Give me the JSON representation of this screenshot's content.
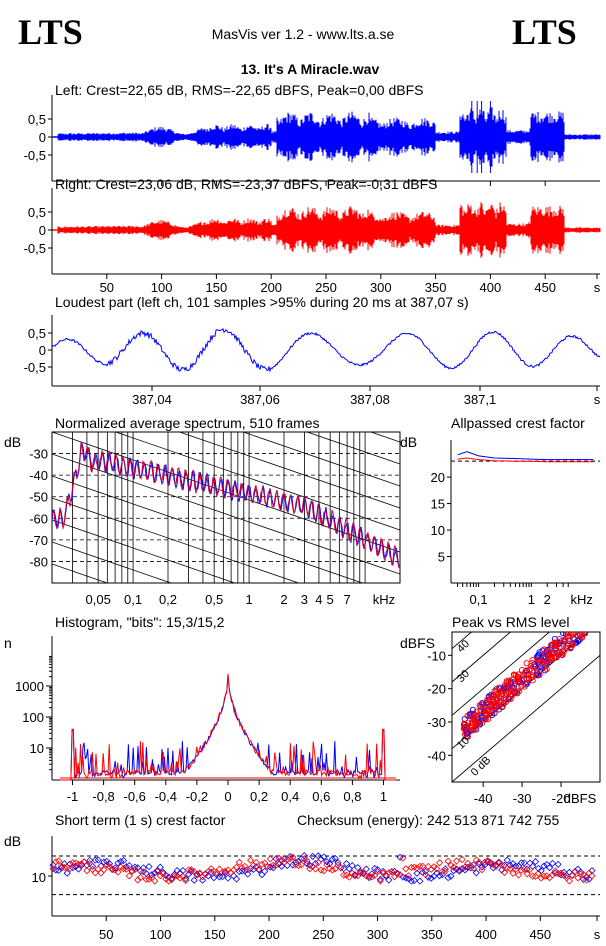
{
  "header": {
    "logo_left": "LTS",
    "logo_right": "LTS",
    "app_title": "MasVis ver 1.2 - www.lts.a.se",
    "file_title": "13. It's A Miracle.wav"
  },
  "colors": {
    "left": "#0000ff",
    "right": "#ff0000",
    "axis": "#000000"
  },
  "chart_data": [
    {
      "id": "left_wave",
      "type": "area",
      "title": "Left: Crest=22,65 dB, RMS=-22,65 dBFS, Peak=0,00 dBFS",
      "yticks": [
        "0,5",
        "0",
        "-0,5"
      ],
      "ylim": [
        -1,
        1
      ],
      "series": [
        {
          "name": "",
          "color": "#0000ff"
        }
      ]
    },
    {
      "id": "right_wave",
      "type": "area",
      "title": "Right: Crest=23,06 dB, RMS=-23,37 dBFS, Peak=-0,31 dBFS",
      "yticks": [
        "0,5",
        "0",
        "-0,5"
      ],
      "ylim": [
        -1,
        1
      ],
      "xticks": [
        "50",
        "100",
        "150",
        "200",
        "250",
        "300",
        "350",
        "400",
        "450",
        "s"
      ],
      "xlim": [
        0,
        500
      ],
      "series": [
        {
          "name": "",
          "color": "#ff0000"
        }
      ]
    },
    {
      "id": "loudest",
      "type": "line",
      "title": "Loudest part (left  ch, 101 samples >95% during 20 ms at 387,07 s)",
      "yticks": [
        "0,5",
        "0",
        "-0,5"
      ],
      "ylim": [
        -1,
        1
      ],
      "xticks": [
        "387,04",
        "387,06",
        "387,08",
        "387,1",
        "s"
      ],
      "xlim": [
        387.02,
        387.12
      ],
      "series": [
        {
          "name": "",
          "color": "#0000ff"
        }
      ]
    },
    {
      "id": "spectrum",
      "type": "line",
      "title": "Normalized average spectrum, 510 frames",
      "ylabel": "dB",
      "yticks": [
        "-30",
        "-40",
        "-50",
        "-60",
        "-70",
        "-80"
      ],
      "ylim": [
        -90,
        -20
      ],
      "xticks": [
        "0,05",
        "0,1",
        "0,2",
        "0,5",
        "1",
        "2",
        "3",
        "4",
        "5",
        "7",
        "kHz"
      ],
      "xlim": [
        0.02,
        20
      ],
      "xscale": "log",
      "series": [
        {
          "name": "",
          "color": "#0000ff"
        },
        {
          "name": "",
          "color": "#cc0033"
        }
      ]
    },
    {
      "id": "allpassed",
      "type": "line",
      "title": "Allpassed crest factor",
      "ylabel": "dB",
      "yticks": [
        "20",
        "15",
        "10",
        "5"
      ],
      "ylim": [
        0,
        27
      ],
      "xticks": [
        "0,1",
        "1",
        "2",
        "kHz"
      ],
      "xlim": [
        0.03,
        20
      ],
      "xscale": "log",
      "series": [
        {
          "name": "",
          "color": "#0000ff",
          "x": [
            0.04,
            0.06,
            0.1,
            0.2,
            0.5,
            1,
            2,
            5,
            15
          ],
          "y": [
            24.2,
            24.8,
            24.0,
            23.6,
            23.5,
            23.4,
            23.3,
            23.3,
            23.3
          ]
        },
        {
          "name": "",
          "color": "#ff0000",
          "x": [
            0.04,
            0.06,
            0.1,
            0.2,
            0.5,
            1,
            2,
            5,
            15
          ],
          "y": [
            23.4,
            23.6,
            23.3,
            23.1,
            23.0,
            23.0,
            22.9,
            22.9,
            22.9
          ]
        }
      ]
    },
    {
      "id": "histogram",
      "type": "line",
      "title": "Histogram, \"bits\": 15,3/15,2",
      "ylabel": "n",
      "yscale": "log",
      "yticks": [
        "1000",
        "100",
        "10"
      ],
      "xticks": [
        "-1",
        "-0,8",
        "-0,6",
        "-0,4",
        "-0,2",
        "0",
        "0,2",
        "0,4",
        "0,6",
        "0,8",
        "1"
      ],
      "xlim": [
        -1.1,
        1.1
      ],
      "series": [
        {
          "name": "",
          "color": "#0000ff"
        },
        {
          "name": "",
          "color": "#ff0000"
        }
      ]
    },
    {
      "id": "peak_rms",
      "type": "scatter",
      "title": "Peak vs RMS level",
      "ylabel": "dBFS",
      "yticks": [
        "-10",
        "-20",
        "-30",
        "-40"
      ],
      "ylim": [
        -48,
        -3
      ],
      "xticks": [
        "-40",
        "-30",
        "-20",
        "dBFS"
      ],
      "xlim": [
        -48,
        -10
      ],
      "diagonal_labels": [
        "40",
        "30",
        "10",
        "0 dB"
      ],
      "series": [
        {
          "name": "",
          "color": "#0000ff"
        },
        {
          "name": "",
          "color": "#ff0000"
        }
      ]
    },
    {
      "id": "short_crest",
      "type": "scatter",
      "title": "Short term (1 s) crest factor",
      "checksum": "Checksum (energy):   242 513 871 742 755",
      "ylabel": "dB",
      "yticks": [
        "10"
      ],
      "ylim": [
        4,
        16
      ],
      "xticks": [
        "50",
        "100",
        "150",
        "200",
        "250",
        "300",
        "350",
        "400",
        "450",
        "s"
      ],
      "xlim": [
        0,
        505
      ],
      "series": [
        {
          "name": "",
          "color": "#0000ff"
        },
        {
          "name": "",
          "color": "#ff0000"
        }
      ]
    }
  ]
}
